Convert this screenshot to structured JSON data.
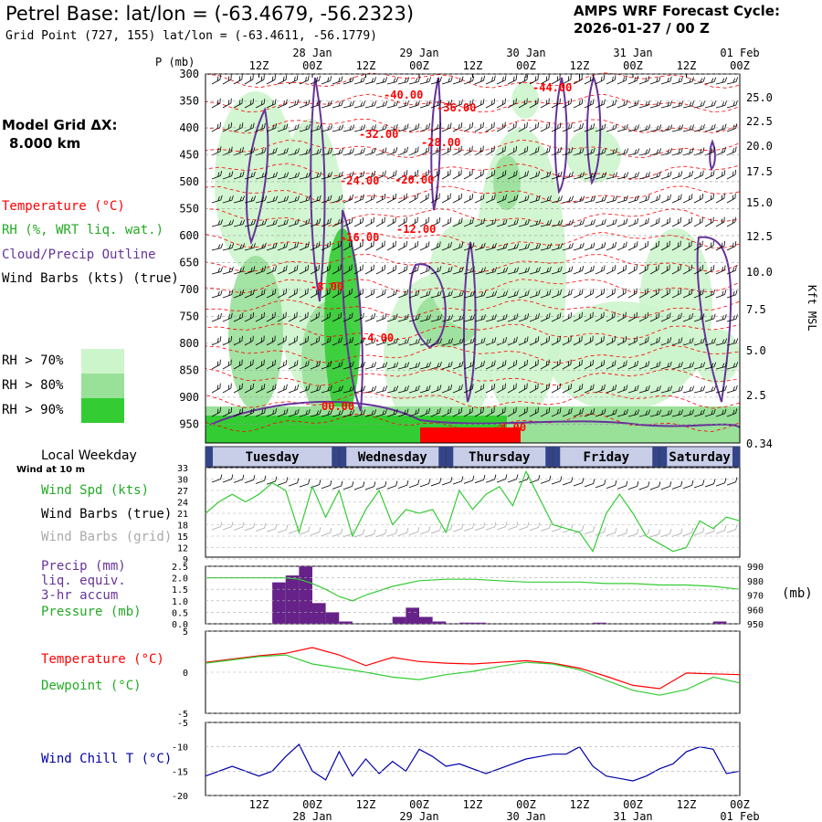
{
  "header": {
    "title": "Petrel Base:  lat/lon = (-63.4679, -56.2323)",
    "subtitle": "Grid Point (727, 155) lat/lon = (-63.4611, -56.1779)",
    "cycle_line1": "AMPS WRF Forecast Cycle:",
    "cycle_line2": "2026-01-27 / 00  Z"
  },
  "left_legend": {
    "model_grid_label": "Model Grid ΔX:",
    "model_grid_value": "8.000 km",
    "temperature": "Temperature (°C)",
    "rh": "RH (%, WRT liq. wat.)",
    "cloud": "Cloud/Precip Outline",
    "wind_barbs": "Wind Barbs (kts) (true)",
    "rh70": "RH > 70%",
    "rh80": "RH > 80%",
    "rh90": "RH > 90%",
    "colors": {
      "rh70": "#ccf5cc",
      "rh80": "#99e099",
      "rh90": "#33cc33",
      "temperature": "#ff0000",
      "cloud": "#663399"
    }
  },
  "time_axis": {
    "top_dates": [
      "28 Jan",
      "29 Jan",
      "30 Jan",
      "31 Jan",
      "01 Feb"
    ],
    "hour_ticks": [
      "12Z",
      "00Z",
      "12Z",
      "00Z",
      "12Z",
      "00Z",
      "12Z",
      "00Z",
      "12Z",
      "00Z"
    ],
    "bottom_dates": [
      "28 Jan",
      "29 Jan",
      "30 Jan",
      "31 Jan",
      "01 Feb"
    ]
  },
  "cross_section": {
    "pressure_label": "P (mb)",
    "pressure_ticks": [
      "300",
      "350",
      "400",
      "450",
      "500",
      "550",
      "600",
      "650",
      "700",
      "750",
      "800",
      "850",
      "900",
      "950"
    ],
    "height_ticks": [
      "25.0",
      "22.5",
      "20.0",
      "17.5",
      "15.0",
      "12.5",
      "10.0",
      "7.5",
      "5.0",
      "2.5",
      "0.34"
    ],
    "height_axis_label": "Kft MSL",
    "isotherm_labels": [
      "-40.00",
      "-44.00",
      "-36.00",
      "-32.00",
      "-28.00",
      "-24.00",
      "-20.00",
      "-16.00",
      "-12.00",
      "-8.00",
      "-4.00",
      "00.00",
      "-4.00"
    ]
  },
  "weekday_bar": {
    "title": "Local Weekday",
    "wind_note": "Wind at 10 m",
    "days": [
      "Tuesday",
      "Wednesday",
      "Thursday",
      "Friday",
      "Saturday"
    ]
  },
  "wind_panel": {
    "spd_label": "Wind Spd (kts)",
    "barbs_true": "Wind Barbs (true)",
    "barbs_grid": "Wind Barbs (grid)",
    "yticks": [
      "33",
      "30",
      "27",
      "24",
      "21",
      "18",
      "15",
      "12",
      "9"
    ]
  },
  "precip_panel": {
    "precip_label": "Precip (mm)",
    "liq_label": "liq. equiv.",
    "accum_label": "3-hr accum",
    "pressure_label": "Pressure (mb)",
    "left_ticks": [
      "2.5",
      "2.0",
      "1.5",
      "1.0",
      "0.5",
      "0.0"
    ],
    "right_ticks": [
      "990",
      "980",
      "970",
      "960",
      "950"
    ],
    "right_unit": "(mb)"
  },
  "temp_panel": {
    "temp_label": "Temperature (°C)",
    "dew_label": "Dewpoint (°C)",
    "yticks": [
      "5",
      "0",
      "-5"
    ]
  },
  "chill_panel": {
    "label": "Wind Chill T (°C)",
    "yticks": [
      "-5",
      "-10",
      "-15",
      "-20"
    ]
  },
  "chart_data": [
    {
      "type": "line",
      "title": "Wind Spd (kts)",
      "x_hours": [
        0,
        3,
        6,
        9,
        12,
        15,
        18,
        21,
        24,
        27,
        30,
        33,
        36,
        39,
        42,
        45,
        48,
        51,
        54,
        57,
        60,
        63,
        66,
        69,
        72,
        75,
        78,
        81,
        84,
        87,
        90,
        93,
        96,
        99,
        102,
        105,
        108,
        111,
        114,
        117,
        120
      ],
      "series": [
        {
          "name": "Wind Spd (kts)",
          "color": "#33cc33",
          "values": [
            21,
            24,
            26,
            24,
            26,
            29,
            27,
            16,
            28,
            20,
            27,
            15,
            22,
            27,
            18,
            22,
            21,
            22,
            16,
            27,
            22,
            26,
            28,
            23,
            32,
            25,
            18,
            17,
            16,
            11,
            21,
            26,
            21,
            15,
            13,
            11,
            12,
            19,
            17,
            20,
            19
          ]
        }
      ],
      "ylim": [
        9,
        33
      ]
    },
    {
      "type": "bar",
      "title": "Precip (mm) 3-hr accum",
      "x_hours": [
        18,
        21,
        24,
        27,
        30,
        33,
        45,
        48,
        51,
        54,
        60,
        63,
        90,
        117
      ],
      "values": [
        1.8,
        2.1,
        2.5,
        0.9,
        0.5,
        0.1,
        0.3,
        0.7,
        0.3,
        0.1,
        0.05,
        0.05,
        0.05,
        0.1
      ],
      "ylim": [
        0,
        2.5
      ]
    },
    {
      "type": "line",
      "title": "Pressure (mb)",
      "x_hours": [
        0,
        6,
        12,
        18,
        21,
        24,
        27,
        30,
        33,
        36,
        42,
        48,
        54,
        60,
        66,
        72,
        78,
        84,
        90,
        96,
        102,
        108,
        114,
        120
      ],
      "values": [
        982,
        982,
        982,
        982,
        981,
        978,
        974,
        969,
        966,
        970,
        976,
        980,
        981,
        981,
        980,
        979,
        979,
        979,
        978,
        978,
        977,
        977,
        976,
        974
      ],
      "ylim": [
        950,
        990
      ]
    },
    {
      "type": "line",
      "title": "Temperature / Dewpoint (°C)",
      "x_hours": [
        0,
        6,
        12,
        18,
        24,
        30,
        36,
        42,
        48,
        54,
        60,
        66,
        72,
        78,
        84,
        90,
        96,
        102,
        108,
        114,
        120
      ],
      "series": [
        {
          "name": "Temperature (°C)",
          "color": "#ff0000",
          "values": [
            1.2,
            1.6,
            2.0,
            2.3,
            3.0,
            2.1,
            0.8,
            1.8,
            1.3,
            1.1,
            1.0,
            1.2,
            1.4,
            1.1,
            0.5,
            -0.5,
            -1.6,
            -2.0,
            -0.1,
            -0.2,
            -0.3
          ]
        },
        {
          "name": "Dewpoint (°C)",
          "color": "#33cc33",
          "values": [
            1.1,
            1.5,
            1.9,
            2.1,
            1.0,
            0.5,
            0.0,
            -0.6,
            -0.9,
            -0.3,
            0.1,
            0.7,
            1.2,
            1.0,
            0.3,
            -1.0,
            -2.2,
            -2.8,
            -2.1,
            -0.6,
            -1.3
          ]
        }
      ],
      "ylim": [
        -5,
        5
      ]
    },
    {
      "type": "line",
      "title": "Wind Chill T (°C)",
      "x_hours": [
        0,
        6,
        12,
        15,
        18,
        21,
        24,
        27,
        30,
        33,
        36,
        39,
        42,
        45,
        48,
        51,
        54,
        57,
        60,
        63,
        66,
        69,
        72,
        75,
        78,
        81,
        84,
        87,
        90,
        93,
        96,
        99,
        102,
        105,
        108,
        111,
        114,
        117,
        120
      ],
      "series": [
        {
          "name": "Wind Chill T (°C)",
          "color": "#0000aa",
          "values": [
            -16,
            -14,
            -16,
            -15,
            -12,
            -9.5,
            -15,
            -16.8,
            -11,
            -16,
            -12.5,
            -15.5,
            -13,
            -15,
            -10.5,
            -12,
            -14,
            -13.5,
            -14.5,
            -15.5,
            -14.5,
            -13.5,
            -12.5,
            -12,
            -11.5,
            -11.5,
            -10,
            -14,
            -16,
            -16.5,
            -17,
            -16,
            -14.5,
            -13.5,
            -11,
            -10,
            -10.5,
            -15.5,
            -15
          ]
        }
      ],
      "ylim": [
        -20,
        -5
      ]
    }
  ]
}
